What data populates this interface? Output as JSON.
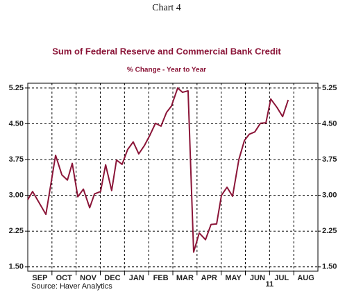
{
  "chart_data": {
    "type": "line",
    "heading": "Chart 4",
    "title": "Sum of Federal Reserve and Commercial Bank Credit",
    "subtitle": "% Change - Year to Year",
    "source": "Source: Haver Analytics",
    "year_label": "11",
    "categories": [
      "SEP",
      "OCT",
      "NOV",
      "DEC",
      "JAN",
      "FEB",
      "MAR",
      "APR",
      "MAY",
      "JUN",
      "JUL",
      "AUG"
    ],
    "xlim": [
      0,
      12
    ],
    "xticks": [
      1,
      2,
      3,
      4,
      5,
      6,
      7,
      8,
      9,
      10,
      11
    ],
    "ylim": [
      1.41,
      5.35
    ],
    "yticks": [
      5.25,
      {
        "value": 4.5,
        "label": "4.50"
      },
      3.75,
      {
        "value": 3.0,
        "label": "3.00"
      },
      2.25,
      {
        "value": 1.5,
        "label": "1.50"
      }
    ],
    "y2lim": [
      1.41,
      5.35
    ],
    "y2ticks": [
      5.25,
      {
        "value": 4.5,
        "label": "4.50"
      },
      3.75,
      {
        "value": 3.0,
        "label": "3.00"
      },
      2.25,
      {
        "value": 1.5,
        "label": "1.50"
      }
    ],
    "grid": true,
    "series": [
      {
        "color": "#8b1538",
        "x": [
          0,
          0.2,
          0.75,
          1.15,
          1.41,
          1.64,
          1.84,
          2.07,
          2.3,
          2.56,
          2.76,
          3.01,
          3.22,
          3.47,
          3.67,
          3.9,
          4.13,
          4.36,
          4.59,
          4.82,
          5.05,
          5.28,
          5.51,
          5.74,
          5.94,
          6.2,
          6.4,
          6.63,
          6.86,
          7.09,
          7.35,
          7.58,
          7.81,
          8.01,
          8.24,
          8.47,
          8.73,
          8.96,
          9.16,
          9.39,
          9.62,
          9.85,
          10.05,
          10.31,
          10.54,
          10.77
        ],
        "values": [
          2.91,
          3.08,
          2.6,
          3.84,
          3.43,
          3.32,
          3.67,
          2.97,
          3.13,
          2.74,
          3.03,
          3.08,
          3.64,
          3.1,
          3.74,
          3.65,
          3.96,
          4.12,
          3.87,
          4.04,
          4.26,
          4.51,
          4.45,
          4.74,
          4.87,
          5.25,
          5.16,
          5.19,
          1.81,
          2.21,
          2.07,
          2.39,
          2.4,
          3.0,
          3.17,
          2.98,
          3.75,
          4.15,
          4.28,
          4.33,
          4.51,
          4.52,
          5.02,
          4.84,
          4.65,
          5.0
        ]
      }
    ]
  }
}
